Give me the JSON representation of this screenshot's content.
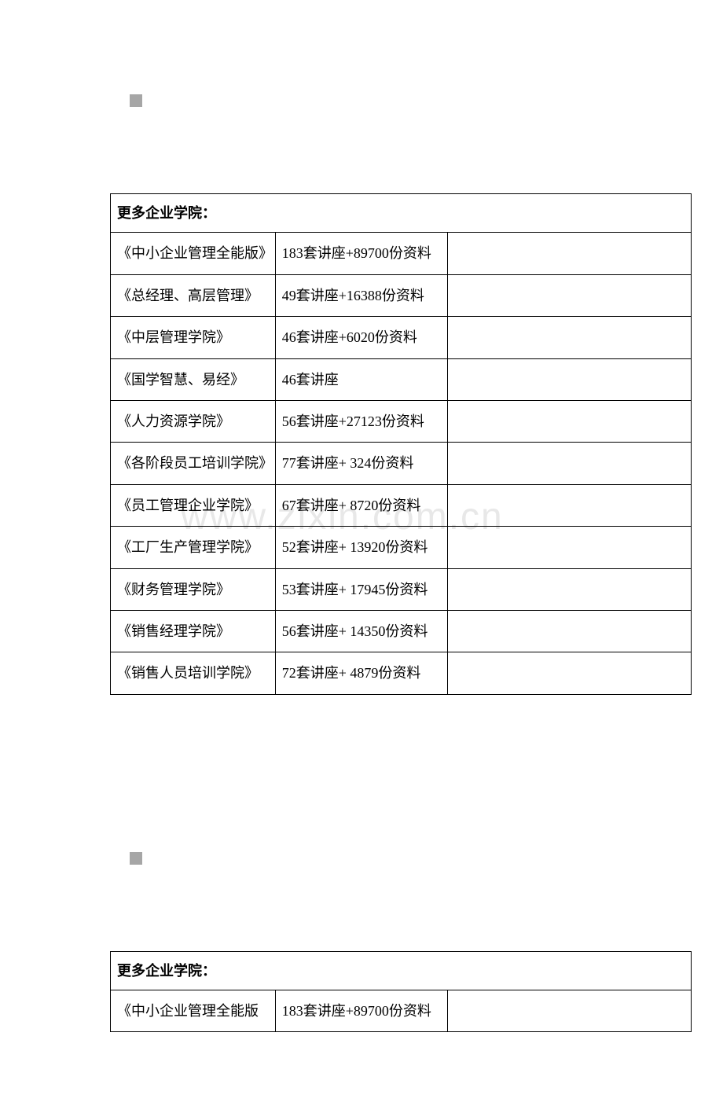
{
  "watermark_text": "www.zixin.com.cn",
  "sections": [
    {
      "header": "更多企业学院：",
      "rows": [
        {
          "col1": "《中小企业管理全能版》",
          "col2": "183套讲座+89700份资料",
          "col3": ""
        },
        {
          "col1": "《总经理、高层管理》",
          "col2": "49套讲座+16388份资料",
          "col3": ""
        },
        {
          "col1": "《中层管理学院》",
          "col2": "46套讲座+6020份资料",
          "col3": ""
        },
        {
          "col1": "《国学智慧、易经》",
          "col2": "46套讲座",
          "col3": ""
        },
        {
          "col1": "《人力资源学院》",
          "col2": "56套讲座+27123份资料",
          "col3": ""
        },
        {
          "col1": "《各阶段员工培训学院》",
          "col2": "77套讲座+ 324份资料",
          "col3": ""
        },
        {
          "col1": "《员工管理企业学院》",
          "col2": "67套讲座+ 8720份资料",
          "col3": ""
        },
        {
          "col1": "《工厂生产管理学院》",
          "col2": "52套讲座+ 13920份资料",
          "col3": ""
        },
        {
          "col1": "《财务管理学院》",
          "col2": "53套讲座+ 17945份资料",
          "col3": ""
        },
        {
          "col1": "《销售经理学院》",
          "col2": "56套讲座+ 14350份资料",
          "col3": ""
        },
        {
          "col1": "《销售人员培训学院》",
          "col2": "72套讲座+ 4879份资料",
          "col3": ""
        }
      ]
    },
    {
      "header": "更多企业学院：",
      "rows": [
        {
          "col1": "《中小企业管理全能版",
          "col2": "183套讲座+89700份资料",
          "col3": ""
        }
      ]
    }
  ]
}
